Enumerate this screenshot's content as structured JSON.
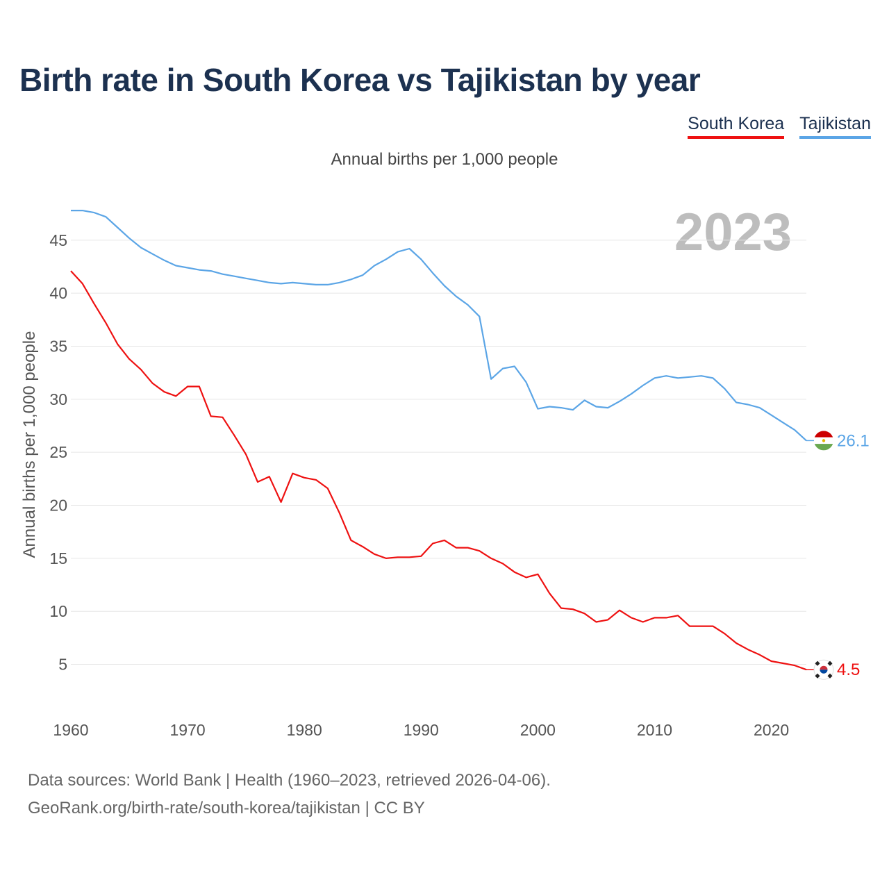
{
  "title": "Birth rate in South Korea vs Tajikistan by year",
  "legend": {
    "south_korea": "South Korea",
    "tajikistan": "Tajikistan"
  },
  "subtitle": "Annual births per 1,000 people",
  "year_watermark": "2023",
  "source": {
    "line1": "Data sources: World Bank | Health (1960–2023, retrieved 2026-04-06).",
    "line2": "GeoRank.org/birth-rate/south-korea/tajikistan | CC BY"
  },
  "chart_data": {
    "type": "line",
    "title": "Birth rate in South Korea vs Tajikistan by year",
    "xlabel": "",
    "ylabel": "Annual births per 1,000 people",
    "xlim": [
      1960,
      2023
    ],
    "ylim": [
      1.5,
      48
    ],
    "x_ticks": [
      1960,
      1970,
      1980,
      1990,
      2000,
      2010,
      2020
    ],
    "y_ticks": [
      5,
      10,
      15,
      20,
      25,
      30,
      35,
      40,
      45
    ],
    "grid": true,
    "legend_position": "top-right",
    "x": [
      1960,
      1961,
      1962,
      1963,
      1964,
      1965,
      1966,
      1967,
      1968,
      1969,
      1970,
      1971,
      1972,
      1973,
      1974,
      1975,
      1976,
      1977,
      1978,
      1979,
      1980,
      1981,
      1982,
      1983,
      1984,
      1985,
      1986,
      1987,
      1988,
      1989,
      1990,
      1991,
      1992,
      1993,
      1994,
      1995,
      1996,
      1997,
      1998,
      1999,
      2000,
      2001,
      2002,
      2003,
      2004,
      2005,
      2006,
      2007,
      2008,
      2009,
      2010,
      2011,
      2012,
      2013,
      2014,
      2015,
      2016,
      2017,
      2018,
      2019,
      2020,
      2021,
      2022,
      2023
    ],
    "series": [
      {
        "name": "South Korea",
        "color": "#ee1111",
        "end_label": "4.5",
        "values": [
          42.1,
          40.9,
          39.0,
          37.2,
          35.2,
          33.8,
          32.8,
          31.5,
          30.7,
          30.3,
          31.2,
          31.2,
          28.4,
          28.3,
          26.6,
          24.8,
          22.2,
          22.7,
          20.3,
          23.0,
          22.6,
          22.4,
          21.6,
          19.3,
          16.7,
          16.1,
          15.4,
          15.0,
          15.1,
          15.1,
          15.2,
          16.4,
          16.7,
          16.0,
          16.0,
          15.7,
          15.0,
          14.5,
          13.7,
          13.2,
          13.5,
          11.7,
          10.3,
          10.2,
          9.8,
          9.0,
          9.2,
          10.1,
          9.4,
          9.0,
          9.4,
          9.4,
          9.6,
          8.6,
          8.6,
          8.6,
          7.9,
          7.0,
          6.4,
          5.9,
          5.3,
          5.1,
          4.9,
          4.5
        ]
      },
      {
        "name": "Tajikistan",
        "color": "#5ba5e6",
        "end_label": "26.1",
        "values": [
          47.8,
          47.8,
          47.6,
          47.2,
          46.2,
          45.2,
          44.3,
          43.7,
          43.1,
          42.6,
          42.4,
          42.2,
          42.1,
          41.8,
          41.6,
          41.4,
          41.2,
          41.0,
          40.9,
          41.0,
          40.9,
          40.8,
          40.8,
          41.0,
          41.3,
          41.7,
          42.6,
          43.2,
          43.9,
          44.2,
          43.2,
          41.9,
          40.7,
          39.7,
          38.9,
          37.8,
          31.9,
          32.9,
          33.1,
          31.6,
          29.1,
          29.3,
          29.2,
          29.0,
          29.9,
          29.3,
          29.2,
          29.8,
          30.5,
          31.3,
          32.0,
          32.2,
          32.0,
          32.1,
          32.2,
          32.0,
          31.0,
          29.7,
          29.5,
          29.2,
          28.5,
          27.8,
          27.1,
          26.1
        ]
      }
    ]
  }
}
